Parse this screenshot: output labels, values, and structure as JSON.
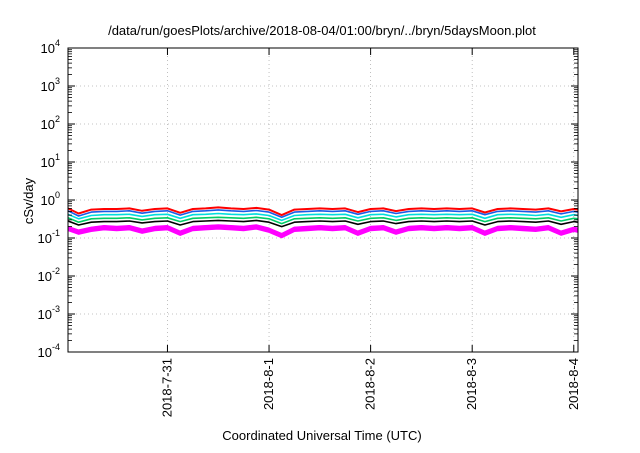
{
  "chart_data": {
    "type": "line",
    "title": "/data/run/goesPlots/archive/2018-08-04/01:00/bryn/../bryn/5daysMoon.plot",
    "xlabel": "Coordinated Universal Time (UTC)",
    "ylabel": "cSv/day",
    "y_scale": "log",
    "ylim": [
      0.0001,
      10000
    ],
    "y_ticks": [
      {
        "value": 10000,
        "base": "10",
        "exp": "4"
      },
      {
        "value": 1000,
        "base": "10",
        "exp": "3"
      },
      {
        "value": 100,
        "base": "10",
        "exp": "2"
      },
      {
        "value": 10,
        "base": "10",
        "exp": "1"
      },
      {
        "value": 1,
        "base": "10",
        "exp": "0"
      },
      {
        "value": 0.1,
        "base": "10",
        "exp": "-1"
      },
      {
        "value": 0.01,
        "base": "10",
        "exp": "-2"
      },
      {
        "value": 0.001,
        "base": "10",
        "exp": "-3"
      },
      {
        "value": 0.0001,
        "base": "10",
        "exp": "-4"
      }
    ],
    "x_range_days": [
      "2018-07-30T00:30",
      "2018-08-04T01:00"
    ],
    "x_ticks": [
      {
        "label": "2018-7-31",
        "value": "2018-07-31"
      },
      {
        "label": "2018-8-1",
        "value": "2018-08-01"
      },
      {
        "label": "2018-8-2",
        "value": "2018-08-02"
      },
      {
        "label": "2018-8-3",
        "value": "2018-08-03"
      },
      {
        "label": "2018-8-4",
        "value": "2018-08-04"
      }
    ],
    "grid": true,
    "x": [
      "2018-07-30T00:30",
      "2018-07-30T03:00",
      "2018-07-30T06:00",
      "2018-07-30T09:00",
      "2018-07-30T12:00",
      "2018-07-30T15:00",
      "2018-07-30T18:00",
      "2018-07-30T21:00",
      "2018-07-31T00:00",
      "2018-07-31T03:00",
      "2018-07-31T06:00",
      "2018-07-31T09:00",
      "2018-07-31T12:00",
      "2018-07-31T15:00",
      "2018-07-31T18:00",
      "2018-07-31T21:00",
      "2018-08-01T00:00",
      "2018-08-01T03:00",
      "2018-08-01T06:00",
      "2018-08-01T09:00",
      "2018-08-01T12:00",
      "2018-08-01T15:00",
      "2018-08-01T18:00",
      "2018-08-01T21:00",
      "2018-08-02T00:00",
      "2018-08-02T03:00",
      "2018-08-02T06:00",
      "2018-08-02T09:00",
      "2018-08-02T12:00",
      "2018-08-02T15:00",
      "2018-08-02T18:00",
      "2018-08-02T21:00",
      "2018-08-03T00:00",
      "2018-08-03T03:00",
      "2018-08-03T06:00",
      "2018-08-03T09:00",
      "2018-08-03T12:00",
      "2018-08-03T15:00",
      "2018-08-03T18:00",
      "2018-08-03T21:00",
      "2018-08-04T00:00",
      "2018-08-04T01:00"
    ],
    "series": [
      {
        "color": "#ff00ff",
        "values": [
          0.2,
          0.16,
          0.19,
          0.21,
          0.2,
          0.21,
          0.17,
          0.2,
          0.21,
          0.15,
          0.2,
          0.21,
          0.22,
          0.21,
          0.2,
          0.22,
          0.18,
          0.13,
          0.19,
          0.2,
          0.21,
          0.2,
          0.21,
          0.15,
          0.2,
          0.21,
          0.16,
          0.2,
          0.21,
          0.2,
          0.21,
          0.2,
          0.21,
          0.15,
          0.2,
          0.21,
          0.2,
          0.19,
          0.21,
          0.15,
          0.19,
          0.18
        ]
      },
      {
        "color": "#000000",
        "values": [
          0.28,
          0.22,
          0.26,
          0.27,
          0.27,
          0.28,
          0.25,
          0.27,
          0.28,
          0.22,
          0.27,
          0.28,
          0.29,
          0.28,
          0.27,
          0.29,
          0.26,
          0.2,
          0.26,
          0.27,
          0.28,
          0.27,
          0.28,
          0.23,
          0.27,
          0.28,
          0.24,
          0.27,
          0.28,
          0.27,
          0.28,
          0.27,
          0.28,
          0.22,
          0.27,
          0.28,
          0.27,
          0.26,
          0.28,
          0.23,
          0.27,
          0.26
        ]
      },
      {
        "color": "#00cc66",
        "values": [
          0.34,
          0.26,
          0.32,
          0.33,
          0.33,
          0.34,
          0.3,
          0.33,
          0.34,
          0.27,
          0.33,
          0.34,
          0.35,
          0.34,
          0.33,
          0.35,
          0.32,
          0.24,
          0.32,
          0.33,
          0.34,
          0.33,
          0.34,
          0.28,
          0.33,
          0.34,
          0.29,
          0.33,
          0.34,
          0.33,
          0.34,
          0.33,
          0.34,
          0.27,
          0.33,
          0.34,
          0.33,
          0.32,
          0.34,
          0.28,
          0.33,
          0.32
        ]
      },
      {
        "color": "#00dddd",
        "values": [
          0.42,
          0.32,
          0.39,
          0.41,
          0.41,
          0.42,
          0.37,
          0.41,
          0.42,
          0.33,
          0.41,
          0.42,
          0.44,
          0.42,
          0.41,
          0.43,
          0.39,
          0.29,
          0.39,
          0.41,
          0.42,
          0.41,
          0.42,
          0.34,
          0.41,
          0.42,
          0.36,
          0.41,
          0.42,
          0.41,
          0.42,
          0.41,
          0.42,
          0.33,
          0.41,
          0.42,
          0.41,
          0.39,
          0.42,
          0.35,
          0.41,
          0.39
        ]
      },
      {
        "color": "#1a5ce6",
        "values": [
          0.52,
          0.38,
          0.48,
          0.5,
          0.5,
          0.52,
          0.45,
          0.5,
          0.52,
          0.4,
          0.5,
          0.52,
          0.55,
          0.52,
          0.5,
          0.53,
          0.48,
          0.35,
          0.48,
          0.5,
          0.52,
          0.5,
          0.52,
          0.42,
          0.5,
          0.52,
          0.44,
          0.5,
          0.52,
          0.5,
          0.52,
          0.5,
          0.52,
          0.41,
          0.5,
          0.52,
          0.5,
          0.48,
          0.52,
          0.43,
          0.5,
          0.48
        ]
      },
      {
        "color": "#ff0000",
        "values": [
          0.6,
          0.44,
          0.56,
          0.58,
          0.58,
          0.6,
          0.52,
          0.58,
          0.6,
          0.46,
          0.58,
          0.6,
          0.64,
          0.6,
          0.58,
          0.62,
          0.56,
          0.4,
          0.56,
          0.58,
          0.6,
          0.58,
          0.6,
          0.48,
          0.58,
          0.6,
          0.51,
          0.58,
          0.6,
          0.58,
          0.6,
          0.58,
          0.6,
          0.47,
          0.58,
          0.6,
          0.58,
          0.56,
          0.6,
          0.5,
          0.58,
          0.56
        ]
      }
    ]
  }
}
